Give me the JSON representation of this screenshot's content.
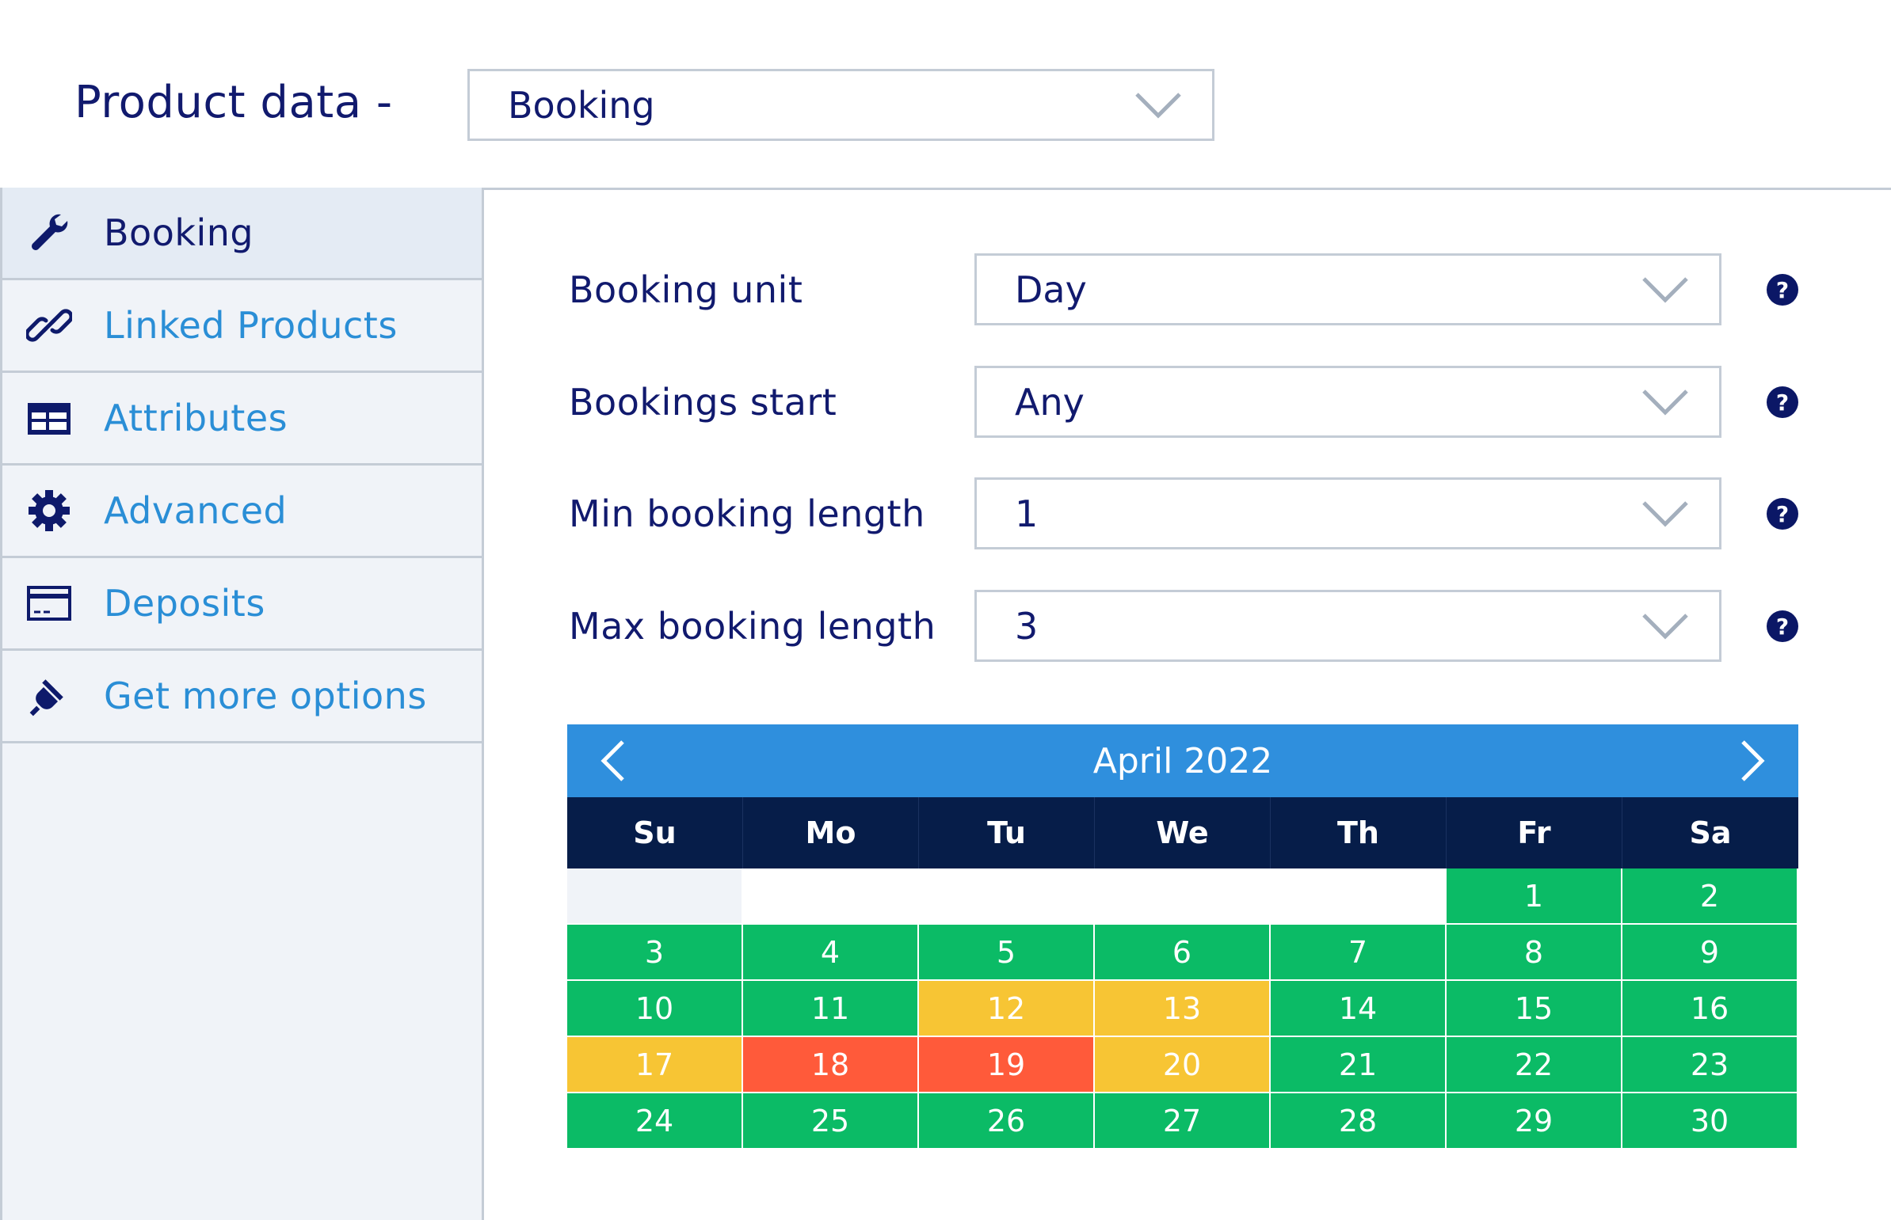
{
  "header": {
    "title": "Product data -",
    "product_type": "Booking"
  },
  "sidebar": {
    "items": [
      {
        "label": "Booking",
        "icon": "wrench-icon"
      },
      {
        "label": "Linked Products",
        "icon": "link-icon"
      },
      {
        "label": "Attributes",
        "icon": "table-icon"
      },
      {
        "label": "Advanced",
        "icon": "gear-icon"
      },
      {
        "label": "Deposits",
        "icon": "card-icon"
      },
      {
        "label": "Get more options",
        "icon": "plug-icon"
      }
    ]
  },
  "form": {
    "fields": [
      {
        "label": "Booking unit",
        "value": "Day"
      },
      {
        "label": "Bookings start",
        "value": "Any"
      },
      {
        "label": "Min booking length",
        "value": "1"
      },
      {
        "label": "Max booking length",
        "value": "3"
      }
    ],
    "help_glyph": "?"
  },
  "calendar": {
    "month": "April 2022",
    "weekdays": [
      "Su",
      "Mo",
      "Tu",
      "We",
      "Th",
      "Fr",
      "Sa"
    ],
    "leading_blanks": 5,
    "days": [
      {
        "d": "1",
        "status": "green"
      },
      {
        "d": "2",
        "status": "green"
      },
      {
        "d": "3",
        "status": "green"
      },
      {
        "d": "4",
        "status": "green"
      },
      {
        "d": "5",
        "status": "green"
      },
      {
        "d": "6",
        "status": "green"
      },
      {
        "d": "7",
        "status": "green"
      },
      {
        "d": "8",
        "status": "green"
      },
      {
        "d": "9",
        "status": "green"
      },
      {
        "d": "10",
        "status": "green"
      },
      {
        "d": "11",
        "status": "green"
      },
      {
        "d": "12",
        "status": "yellow"
      },
      {
        "d": "13",
        "status": "yellow"
      },
      {
        "d": "14",
        "status": "green"
      },
      {
        "d": "15",
        "status": "green"
      },
      {
        "d": "16",
        "status": "green"
      },
      {
        "d": "17",
        "status": "yellow"
      },
      {
        "d": "18",
        "status": "red"
      },
      {
        "d": "19",
        "status": "red"
      },
      {
        "d": "20",
        "status": "yellow"
      },
      {
        "d": "21",
        "status": "green"
      },
      {
        "d": "22",
        "status": "green"
      },
      {
        "d": "23",
        "status": "green"
      },
      {
        "d": "24",
        "status": "green"
      },
      {
        "d": "25",
        "status": "green"
      },
      {
        "d": "26",
        "status": "green"
      },
      {
        "d": "27",
        "status": "green"
      },
      {
        "d": "28",
        "status": "green"
      },
      {
        "d": "29",
        "status": "green"
      },
      {
        "d": "30",
        "status": "green"
      }
    ]
  },
  "colors": {
    "navy": "#111a6e",
    "link_blue": "#2a8ed6",
    "calendar_header": "#2f8fdd",
    "weekday_bar": "#061d49",
    "available": "#0bbb66",
    "partially_booked": "#f7c534",
    "fully_booked": "#ff5a3a"
  }
}
